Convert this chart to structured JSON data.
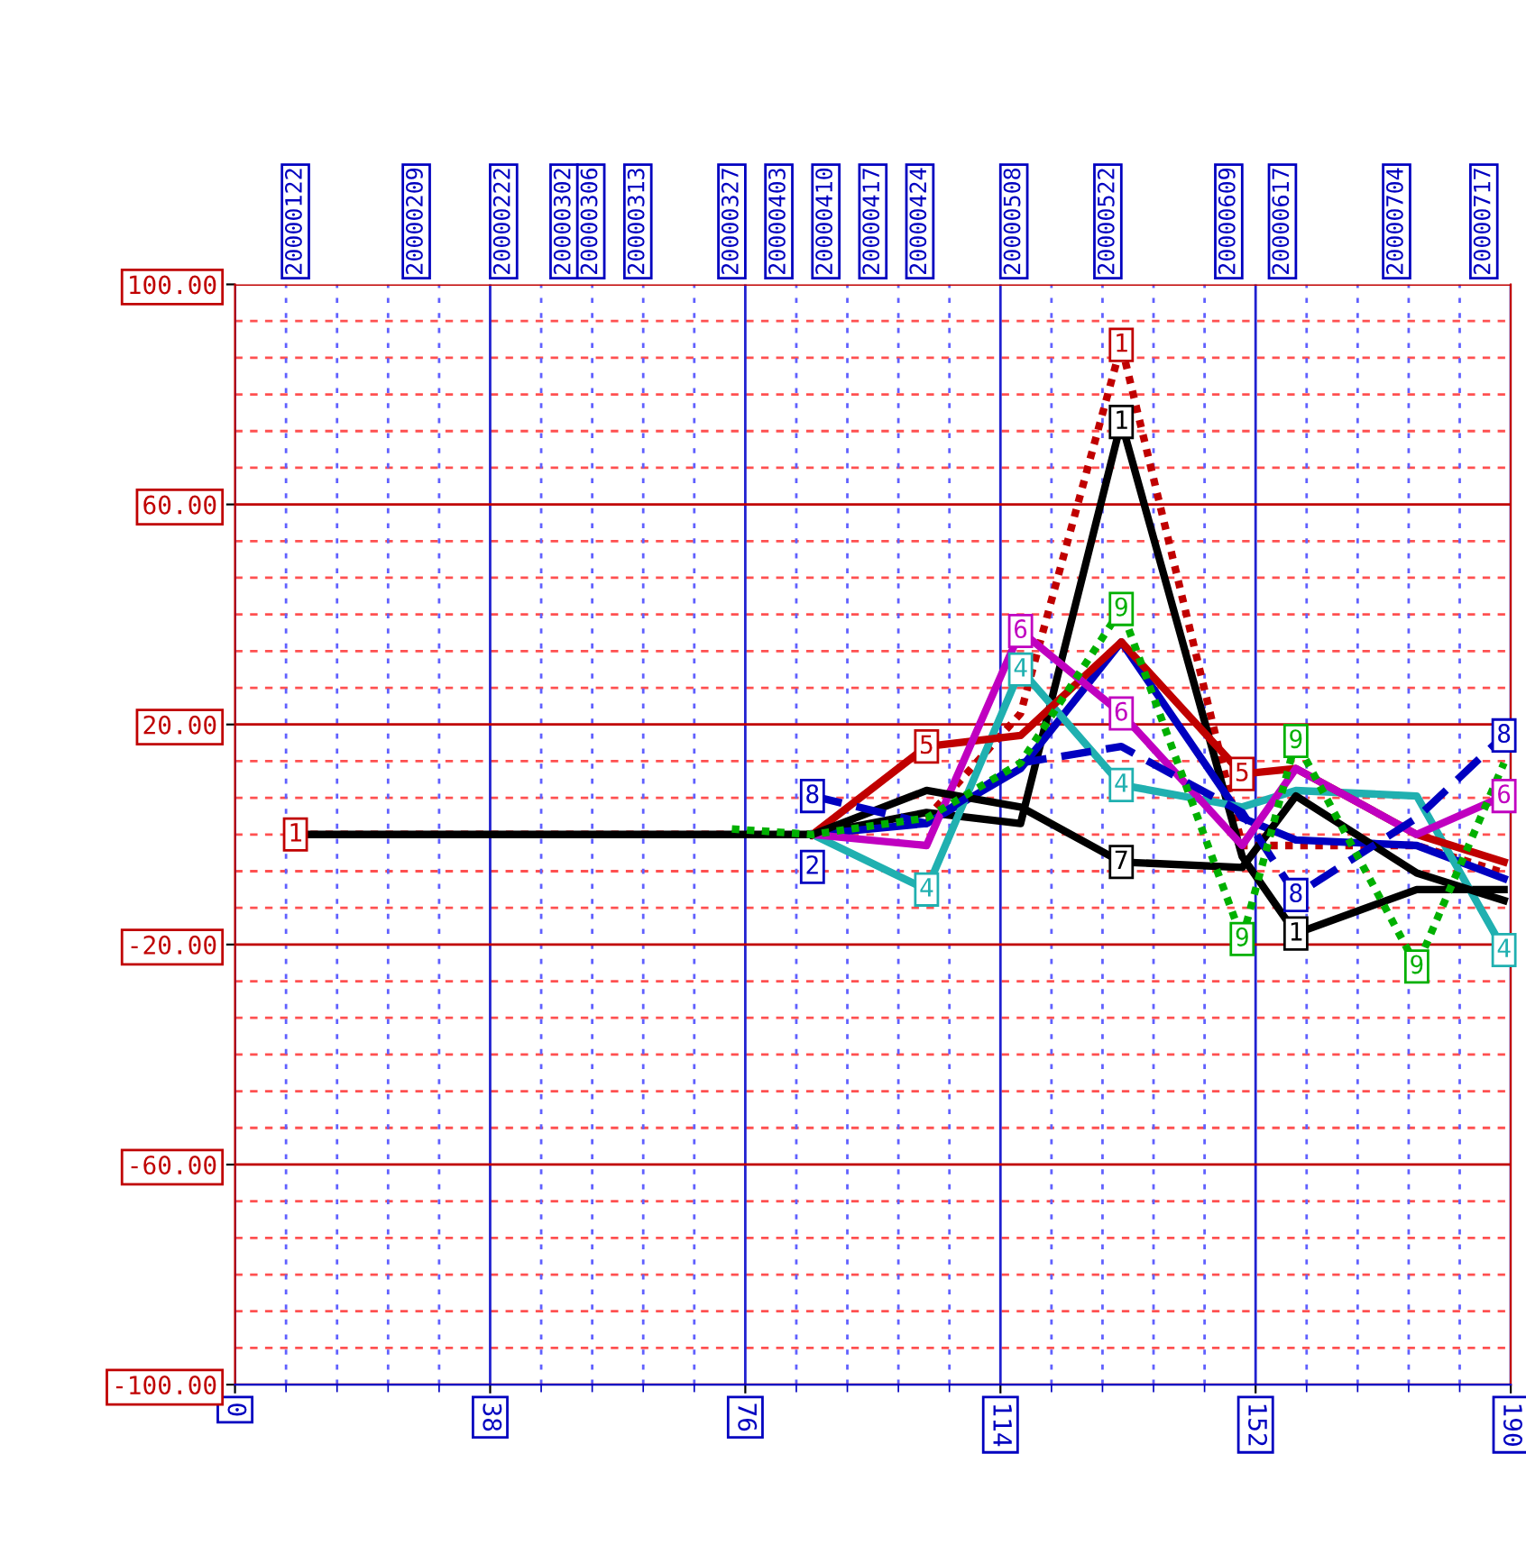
{
  "chart_data": {
    "type": "line",
    "xlim": [
      0,
      190
    ],
    "xticks": [
      0,
      38,
      76,
      114,
      152,
      190,
      {
        "value": 7.6,
        "label": null
      },
      {
        "value": 15.2,
        "label": null
      },
      {
        "value": 22.8,
        "label": null
      },
      {
        "value": 30.4,
        "label": null
      },
      {
        "value": 45.6,
        "label": null
      },
      {
        "value": 53.2,
        "label": null
      },
      {
        "value": 60.8,
        "label": null
      },
      {
        "value": 68.4,
        "label": null
      },
      {
        "value": 83.6,
        "label": null
      },
      {
        "value": 91.2,
        "label": null
      },
      {
        "value": 98.8,
        "label": null
      },
      {
        "value": 106.4,
        "label": null
      },
      {
        "value": 121.6,
        "label": null
      },
      {
        "value": 129.2,
        "label": null
      },
      {
        "value": 136.8,
        "label": null
      },
      {
        "value": 144.4,
        "label": null
      },
      {
        "value": 159.6,
        "label": null
      },
      {
        "value": 167.2,
        "label": null
      },
      {
        "value": 174.8,
        "label": null
      },
      {
        "value": 182.4,
        "label": null
      }
    ],
    "ylim": [
      -100,
      100
    ],
    "yticks": [
      {
        "value": 100,
        "label": "100.00"
      },
      {
        "value": 60,
        "label": "60.00"
      },
      {
        "value": 20,
        "label": "20.00"
      },
      {
        "value": -20,
        "label": "-20.00"
      },
      {
        "value": -60,
        "label": "-60.00"
      },
      {
        "value": -100,
        "label": "-100.00"
      },
      {
        "value": 93.33,
        "label": null
      },
      {
        "value": 86.67,
        "label": null
      },
      {
        "value": 80,
        "label": null
      },
      {
        "value": 73.33,
        "label": null
      },
      {
        "value": 66.67,
        "label": null
      },
      {
        "value": 53.33,
        "label": null
      },
      {
        "value": 46.67,
        "label": null
      },
      {
        "value": 40,
        "label": null
      },
      {
        "value": 33.33,
        "label": null
      },
      {
        "value": 26.67,
        "label": null
      },
      {
        "value": 13.33,
        "label": null
      },
      {
        "value": 6.67,
        "label": null
      },
      {
        "value": 0,
        "label": null
      },
      {
        "value": -6.67,
        "label": null
      },
      {
        "value": -13.33,
        "label": null
      },
      {
        "value": -26.67,
        "label": null
      },
      {
        "value": -33.33,
        "label": null
      },
      {
        "value": -40,
        "label": null
      },
      {
        "value": -46.67,
        "label": null
      },
      {
        "value": -53.33,
        "label": null
      },
      {
        "value": -66.67,
        "label": null
      },
      {
        "value": -73.33,
        "label": null
      },
      {
        "value": -80,
        "label": null
      },
      {
        "value": -86.67,
        "label": null
      },
      {
        "value": -93.33,
        "label": null
      }
    ],
    "x2lim": [
      "2000-01-13",
      "2000-07-21"
    ],
    "x2ticks": [
      {
        "value": "2000-01-22",
        "label": "20000122"
      },
      {
        "value": "2000-02-09",
        "label": "20000209"
      },
      {
        "value": "2000-02-22",
        "label": "20000222"
      },
      {
        "value": "2000-03-02",
        "label": "20000302"
      },
      {
        "value": "2000-03-06",
        "label": "20000306"
      },
      {
        "value": "2000-03-13",
        "label": "20000313"
      },
      {
        "value": "2000-03-27",
        "label": "20000327"
      },
      {
        "value": "2000-04-03",
        "label": "20000403"
      },
      {
        "value": "2000-04-10",
        "label": "20000410"
      },
      {
        "value": "2000-04-17",
        "label": "20000417"
      },
      {
        "value": "2000-04-24",
        "label": "20000424"
      },
      {
        "value": "2000-05-08",
        "label": "20000508"
      },
      {
        "value": "2000-05-22",
        "label": "20000522"
      },
      {
        "value": "2000-06-09",
        "label": "20000609"
      },
      {
        "value": "2000-06-17",
        "label": "20000617"
      },
      {
        "value": "2000-07-04",
        "label": "20000704"
      },
      {
        "value": "2000-07-17",
        "label": "20000717"
      }
    ],
    "grid": true,
    "series": [
      {
        "name": "1",
        "color": "#c00000",
        "line_style": "dotted",
        "x": [
          9,
          74,
          86,
          103,
          117,
          132,
          150,
          158,
          176,
          189
        ],
        "values": [
          0,
          0,
          0,
          3,
          22,
          89,
          -2,
          -2,
          -2,
          -7
        ]
      },
      {
        "name": "1",
        "color": "#000000",
        "line_style": "solid",
        "x": [
          9,
          74,
          86,
          103,
          117,
          132,
          150,
          158,
          176,
          189
        ],
        "values": [
          0,
          0,
          0,
          4,
          2,
          75,
          -4,
          -18,
          -10,
          -10
        ]
      },
      {
        "name": "2",
        "color": "#0000c0",
        "line_style": "solid",
        "x": [
          86,
          103,
          117,
          132,
          150,
          158,
          176,
          189
        ],
        "values": [
          0,
          2,
          12,
          35,
          3,
          -1,
          -2,
          -8
        ]
      },
      {
        "name": "4",
        "color": "#20b0b0",
        "line_style": "solid",
        "x": [
          86,
          103,
          117,
          132,
          150,
          158,
          176,
          189
        ],
        "values": [
          0,
          -10,
          30,
          9,
          5,
          8,
          7,
          -21
        ]
      },
      {
        "name": "5",
        "color": "#c00000",
        "line_style": "solid",
        "x": [
          86,
          103,
          117,
          132,
          150,
          158,
          176,
          189
        ],
        "values": [
          0,
          16,
          18,
          35,
          11,
          12,
          0,
          -5
        ]
      },
      {
        "name": "6",
        "color": "#c000c0",
        "line_style": "solid",
        "x": [
          86,
          103,
          117,
          132,
          150,
          158,
          176,
          189
        ],
        "values": [
          0,
          -2,
          37,
          22,
          -2,
          12,
          0,
          7
        ]
      },
      {
        "name": "7",
        "color": "#000000",
        "line_style": "solid",
        "x": [
          86,
          103,
          117,
          132,
          150,
          158,
          176,
          189
        ],
        "values": [
          0,
          8,
          5,
          -5,
          -6,
          7,
          -7,
          -12
        ]
      },
      {
        "name": "8",
        "color": "#0000c0",
        "line_style": "dashed",
        "x": [
          86,
          103,
          117,
          132,
          150,
          158,
          176,
          189
        ],
        "values": [
          7,
          2,
          13,
          16,
          4,
          -11,
          3,
          18
        ]
      },
      {
        "name": "9",
        "color": "#00b000",
        "line_style": "dotted",
        "x": [
          74,
          86,
          103,
          117,
          132,
          150,
          158,
          176,
          189
        ],
        "values": [
          1,
          0,
          3,
          13,
          41,
          -19,
          17,
          -24,
          13
        ]
      }
    ]
  }
}
